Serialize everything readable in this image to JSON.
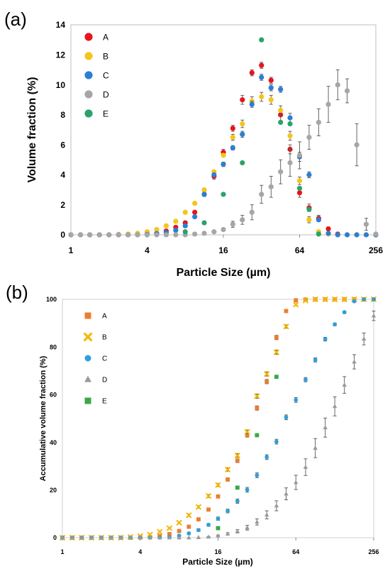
{
  "figure": {
    "panels": [
      "(a)",
      "(b)"
    ]
  },
  "colors": {
    "a": {
      "A": "#e8141a",
      "B": "#f5c518",
      "C": "#2a7fd4",
      "D": "#a6a6a6",
      "E": "#2aa36a"
    },
    "b": {
      "A": "#ed7d31",
      "B": "#f5b800",
      "C": "#2e9fdc",
      "D": "#9a9a9a",
      "E": "#3aa846"
    }
  },
  "chart_data": [
    {
      "panel": "(a)",
      "type": "scatter",
      "title": "",
      "xlabel": "Particle Size (µm)",
      "ylabel": "Volume fraction (%)",
      "x_scale": "log2",
      "xlim": [
        1,
        256
      ],
      "ylim": [
        0,
        14
      ],
      "xticks": [
        "1",
        "4",
        "16",
        "64",
        "256"
      ],
      "yticks": [
        "0",
        "2",
        "4",
        "6",
        "8",
        "10",
        "12",
        "14"
      ],
      "grid": false,
      "legend": "top-left",
      "series": [
        {
          "name": "A",
          "marker": "circle",
          "x": [
            1,
            1.19,
            1.41,
            1.68,
            2,
            2.38,
            2.83,
            3.36,
            4,
            4.76,
            5.66,
            6.73,
            8,
            9.51,
            11.3,
            13.5,
            16,
            19,
            22.6,
            26.9,
            32,
            38.1,
            45.3,
            53.8,
            64,
            76.1,
            90.5,
            108,
            128
          ],
          "y": [
            0,
            0,
            0,
            0,
            0,
            0,
            0,
            0.02,
            0.05,
            0.1,
            0.25,
            0.5,
            0.8,
            1.5,
            2.7,
            3.9,
            5.5,
            7.1,
            9.0,
            10.8,
            11.3,
            10.3,
            8.0,
            5.7,
            2.8,
            1.8,
            1.1,
            0.4,
            0.05
          ],
          "err": [
            0,
            0,
            0,
            0,
            0,
            0,
            0,
            0,
            0,
            0,
            0,
            0,
            0,
            0,
            0.15,
            0.2,
            0.2,
            0.2,
            0.3,
            0.2,
            0.2,
            0.2,
            0.4,
            0.3,
            0.3,
            0.25,
            0.2,
            0.1,
            0
          ]
        },
        {
          "name": "B",
          "marker": "circle",
          "x": [
            1,
            1.19,
            1.41,
            1.68,
            2,
            2.38,
            2.83,
            3.36,
            4,
            4.76,
            5.66,
            6.73,
            8,
            9.51,
            11.3,
            13.5,
            16,
            19,
            22.6,
            26.9,
            32,
            38.1,
            45.3,
            53.8,
            64,
            76.1,
            90.5,
            108,
            128,
            152,
            181,
            215,
            256
          ],
          "y": [
            0,
            0,
            0,
            0,
            0,
            0.03,
            0.05,
            0.1,
            0.2,
            0.35,
            0.6,
            0.9,
            1.5,
            2.1,
            3.0,
            4.2,
            5.3,
            6.5,
            7.4,
            8.9,
            9.2,
            9.0,
            8.3,
            6.6,
            3.6,
            1.0,
            0.2,
            0.05,
            0,
            0,
            0,
            0,
            0
          ],
          "err": [
            0,
            0,
            0,
            0,
            0,
            0,
            0,
            0,
            0,
            0,
            0,
            0,
            0,
            0,
            0,
            0.1,
            0.1,
            0.2,
            0.25,
            0.3,
            0.3,
            0.3,
            0.3,
            0.3,
            0.25,
            0.2,
            0.1,
            0,
            0,
            0,
            0,
            0,
            0
          ]
        },
        {
          "name": "C",
          "marker": "circle",
          "x": [
            1,
            1.19,
            1.41,
            1.68,
            2,
            2.38,
            2.83,
            3.36,
            4,
            4.76,
            5.66,
            6.73,
            8,
            9.51,
            11.3,
            13.5,
            16,
            19,
            22.6,
            26.9,
            32,
            38.1,
            45.3,
            53.8,
            64,
            76.1,
            90.5,
            108,
            128,
            152,
            181,
            215,
            256
          ],
          "y": [
            0,
            0,
            0,
            0,
            0,
            0,
            0,
            0,
            0.03,
            0.08,
            0.15,
            0.3,
            0.6,
            1.2,
            2.7,
            4.0,
            4.7,
            5.8,
            6.7,
            8.7,
            10.5,
            9.8,
            9.7,
            7.8,
            5.2,
            4.0,
            1.0,
            0.1,
            0,
            0,
            0,
            0,
            0
          ],
          "err": [
            0,
            0,
            0,
            0,
            0,
            0,
            0,
            0,
            0,
            0,
            0,
            0,
            0,
            0,
            0.1,
            0.1,
            0.15,
            0.15,
            0.2,
            0.2,
            0.2,
            0.2,
            0.2,
            0.3,
            0.3,
            0.2,
            0.1,
            0,
            0,
            0,
            0,
            0,
            0
          ]
        },
        {
          "name": "D",
          "marker": "circle",
          "x": [
            1,
            1.19,
            1.41,
            1.68,
            2,
            2.38,
            2.83,
            3.36,
            4,
            4.76,
            5.66,
            6.73,
            8,
            9.51,
            11.3,
            13.5,
            16,
            19,
            22.6,
            26.9,
            32,
            38.1,
            45.3,
            53.8,
            64,
            76.1,
            90.5,
            108,
            128,
            152,
            181,
            215,
            256
          ],
          "y": [
            0,
            0,
            0,
            0,
            0,
            0,
            0,
            0,
            0,
            0,
            0,
            0,
            0,
            0.05,
            0.1,
            0.2,
            0.35,
            0.7,
            1.0,
            1.5,
            2.7,
            3.2,
            4.2,
            4.8,
            5.3,
            6.5,
            7.5,
            8.7,
            10.0,
            9.6,
            6.0,
            0.7,
            0.05
          ],
          "err": [
            0,
            0,
            0,
            0,
            0,
            0,
            0,
            0,
            0,
            0,
            0,
            0,
            0,
            0,
            0,
            0.05,
            0.1,
            0.2,
            0.3,
            0.5,
            0.6,
            0.7,
            0.8,
            0.9,
            0.9,
            0.8,
            0.9,
            1.2,
            1.0,
            0.8,
            1.4,
            0.4,
            0
          ]
        },
        {
          "name": "E",
          "marker": "circle",
          "x": [
            8,
            11.3,
            16,
            22.6,
            32,
            45.3,
            53.8,
            64,
            76.1,
            90.5
          ],
          "y": [
            0.2,
            0.8,
            2.7,
            4.8,
            13.0,
            7.5,
            7.4,
            3.1,
            1.7,
            0.05
          ],
          "err": [
            0,
            0,
            0,
            0,
            0,
            0,
            0,
            0,
            0,
            0
          ]
        }
      ]
    },
    {
      "panel": "(b)",
      "type": "scatter",
      "title": "",
      "xlabel": "Particle Size (µm)",
      "ylabel": "Accumulative volume fraction (%)",
      "x_scale": "log2",
      "xlim": [
        1,
        256
      ],
      "ylim": [
        0,
        100
      ],
      "xticks": [
        "1",
        "4",
        "16",
        "64",
        "256"
      ],
      "yticks": [
        "0",
        "20",
        "40",
        "60",
        "80",
        "100"
      ],
      "grid": false,
      "legend": "top-left",
      "series": [
        {
          "name": "A",
          "marker": "square",
          "x": [
            1,
            1.19,
            1.41,
            1.68,
            2,
            2.38,
            2.83,
            3.36,
            4,
            4.76,
            5.66,
            6.73,
            8,
            9.51,
            11.3,
            13.5,
            16,
            19,
            22.6,
            26.9,
            32,
            38.1,
            45.3,
            53.8,
            64,
            76.1,
            90.5,
            108,
            128,
            152,
            181,
            215,
            256
          ],
          "y": [
            0,
            0,
            0,
            0,
            0,
            0,
            0,
            0,
            0.1,
            0.3,
            0.7,
            1.5,
            2.8,
            4.6,
            7.7,
            11.8,
            17.3,
            24.4,
            32.3,
            43.1,
            54.4,
            65.5,
            84.0,
            95.1,
            99.6,
            99.9,
            100,
            100,
            100,
            100,
            100,
            100,
            100
          ],
          "err": [
            0,
            0,
            0,
            0,
            0,
            0,
            0,
            0,
            0,
            0,
            0,
            0,
            0.3,
            0.4,
            0.5,
            0.5,
            0.6,
            0.7,
            0.8,
            0.9,
            0.9,
            0.9,
            0.9,
            0.5,
            0.3,
            0,
            0,
            0,
            0,
            0,
            0,
            0,
            0
          ]
        },
        {
          "name": "B",
          "marker": "x",
          "x": [
            1,
            1.19,
            1.41,
            1.68,
            2,
            2.38,
            2.83,
            3.36,
            4,
            4.76,
            5.66,
            6.73,
            8,
            9.51,
            11.3,
            13.5,
            16,
            19,
            22.6,
            26.9,
            32,
            38.1,
            45.3,
            53.8,
            64,
            76.1,
            90.5,
            108,
            128,
            152,
            181,
            215,
            256
          ],
          "y": [
            0,
            0,
            0,
            0,
            0,
            0,
            0,
            0.3,
            0.7,
            1.3,
            2.5,
            4.0,
            6.3,
            9.4,
            12.9,
            17.5,
            22.1,
            28.6,
            34.5,
            44.4,
            59.4,
            68.7,
            77.8,
            88.6,
            97.8,
            99.5,
            100,
            100,
            100,
            100,
            100,
            100,
            100
          ],
          "err": [
            0,
            0,
            0,
            0,
            0,
            0,
            0,
            0,
            0,
            0,
            0,
            0.3,
            0.4,
            0.5,
            0.5,
            0.6,
            0.6,
            0.7,
            0.8,
            0.8,
            0.9,
            0.9,
            0.9,
            0.7,
            0.4,
            0.2,
            0,
            0,
            0,
            0,
            0,
            0,
            0
          ]
        },
        {
          "name": "C",
          "marker": "circle",
          "x": [
            1,
            1.19,
            1.41,
            1.68,
            2,
            2.38,
            2.83,
            3.36,
            4,
            4.76,
            5.66,
            6.73,
            8,
            9.51,
            11.3,
            13.5,
            16,
            19,
            22.6,
            26.9,
            32,
            38.1,
            45.3,
            53.8,
            64,
            76.1,
            90.5,
            108,
            128,
            152,
            181,
            215,
            256
          ],
          "y": [
            0,
            0,
            0,
            0,
            0,
            0,
            0,
            0,
            0,
            0,
            0.1,
            0.3,
            0.8,
            1.8,
            3.2,
            5.4,
            8.0,
            11.2,
            15.3,
            20.1,
            26.2,
            33.8,
            40.3,
            50.5,
            57.8,
            66.3,
            74.6,
            83.3,
            89.5,
            94.6,
            99.2,
            100,
            100
          ],
          "err": [
            0,
            0,
            0,
            0,
            0,
            0,
            0,
            0,
            0,
            0,
            0,
            0,
            0.4,
            0.5,
            0.6,
            0.6,
            0.7,
            0.8,
            0.9,
            1.0,
            1.0,
            1.0,
            1.0,
            1.0,
            1.0,
            0.9,
            0.9,
            0.8,
            0.6,
            0.5,
            0.3,
            0,
            0
          ]
        },
        {
          "name": "D",
          "marker": "triangle",
          "x": [
            1,
            1.19,
            1.41,
            1.68,
            2,
            2.38,
            2.83,
            3.36,
            4,
            4.76,
            5.66,
            6.73,
            8,
            9.51,
            11.3,
            13.5,
            16,
            19,
            22.6,
            26.9,
            32,
            38.1,
            45.3,
            53.8,
            64,
            76.1,
            90.5,
            108,
            128,
            152,
            181,
            215,
            256
          ],
          "y": [
            0,
            0,
            0,
            0,
            0,
            0,
            0,
            0,
            0,
            0,
            0,
            0,
            0,
            0,
            0.1,
            0.3,
            0.8,
            1.6,
            2.7,
            4.2,
            6.6,
            9.6,
            13.4,
            18.4,
            23.2,
            29.6,
            37.6,
            46.2,
            55.1,
            64.1,
            73.8,
            83.4,
            93.1
          ],
          "err": [
            0,
            0,
            0,
            0,
            0,
            0,
            0,
            0,
            0,
            0,
            0,
            0,
            0,
            0,
            0,
            0.2,
            0.3,
            0.5,
            0.7,
            1.0,
            1.3,
            1.7,
            2.1,
            2.5,
            3.0,
            3.5,
            4.0,
            4.0,
            4.0,
            3.5,
            3.0,
            2.5,
            2.0
          ]
        },
        {
          "name": "E",
          "marker": "square",
          "x": [
            16,
            22.6,
            32,
            45.3
          ],
          "y": [
            4.0,
            21.0,
            43.0,
            67.5
          ],
          "err": [
            0,
            0,
            0,
            0
          ]
        }
      ]
    }
  ]
}
